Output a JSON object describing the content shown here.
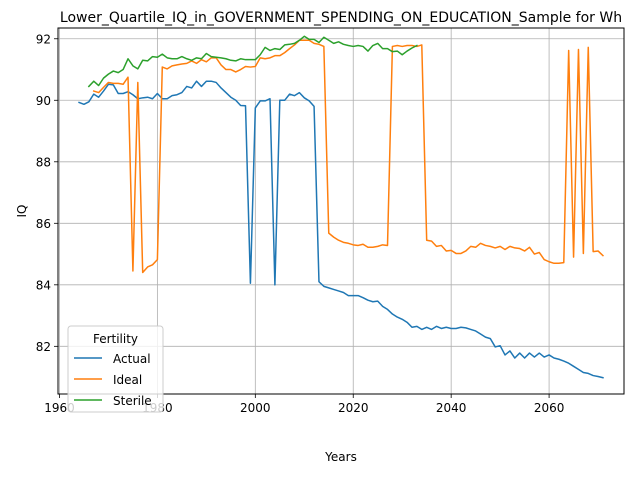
{
  "chart_data": {
    "type": "line",
    "title": "Lower_Quartile_IQ_in_GOVERNMENT_SPENDING_ON_EDUCATION_Sample for Wh",
    "xlabel": "Years",
    "ylabel": "IQ",
    "xlim": [
      1959.7,
      2075.3
    ],
    "ylim": [
      80.45,
      92.35
    ],
    "xticks": [
      1960,
      1980,
      2000,
      2020,
      2040,
      2060
    ],
    "yticks": [
      82,
      84,
      86,
      88,
      90,
      92
    ],
    "grid": true,
    "legend": {
      "title": "Fertility",
      "placement": "lower-left"
    },
    "series": [
      {
        "name": "Actual",
        "color": "#1f77b4",
        "points": [
          [
            1964,
            89.93
          ],
          [
            1965,
            89.87
          ],
          [
            1966,
            89.95
          ],
          [
            1967,
            90.2
          ],
          [
            1968,
            90.1
          ],
          [
            1969,
            90.3
          ],
          [
            1970,
            90.52
          ],
          [
            1971,
            90.5
          ],
          [
            1972,
            90.22
          ],
          [
            1973,
            90.22
          ],
          [
            1974,
            90.28
          ],
          [
            1975,
            90.18
          ],
          [
            1976,
            90.05
          ],
          [
            1977,
            90.08
          ],
          [
            1978,
            90.1
          ],
          [
            1979,
            90.05
          ],
          [
            1980,
            90.22
          ],
          [
            1981,
            90.05
          ],
          [
            1982,
            90.05
          ],
          [
            1983,
            90.15
          ],
          [
            1984,
            90.18
          ],
          [
            1985,
            90.25
          ],
          [
            1986,
            90.45
          ],
          [
            1987,
            90.4
          ],
          [
            1988,
            90.62
          ],
          [
            1989,
            90.45
          ],
          [
            1990,
            90.62
          ],
          [
            1991,
            90.62
          ],
          [
            1992,
            90.58
          ],
          [
            1993,
            90.4
          ],
          [
            1994,
            90.25
          ],
          [
            1995,
            90.1
          ],
          [
            1996,
            90.0
          ],
          [
            1997,
            89.83
          ],
          [
            1998,
            89.82
          ],
          [
            1999,
            84.05
          ],
          [
            2000,
            89.75
          ],
          [
            2001,
            89.98
          ],
          [
            2002,
            89.98
          ],
          [
            2003,
            90.05
          ],
          [
            2004,
            84.0
          ],
          [
            2005,
            90.0
          ],
          [
            2006,
            90.0
          ],
          [
            2007,
            90.2
          ],
          [
            2008,
            90.15
          ],
          [
            2009,
            90.25
          ],
          [
            2010,
            90.08
          ],
          [
            2011,
            89.98
          ],
          [
            2012,
            89.8
          ],
          [
            2013,
            84.1
          ],
          [
            2014,
            83.95
          ],
          [
            2015,
            83.9
          ],
          [
            2016,
            83.85
          ],
          [
            2017,
            83.8
          ],
          [
            2018,
            83.75
          ],
          [
            2019,
            83.65
          ],
          [
            2020,
            83.65
          ],
          [
            2021,
            83.65
          ],
          [
            2022,
            83.58
          ],
          [
            2023,
            83.5
          ],
          [
            2024,
            83.45
          ],
          [
            2025,
            83.47
          ],
          [
            2026,
            83.3
          ],
          [
            2027,
            83.2
          ],
          [
            2028,
            83.05
          ],
          [
            2029,
            82.95
          ],
          [
            2030,
            82.88
          ],
          [
            2031,
            82.78
          ],
          [
            2032,
            82.62
          ],
          [
            2033,
            82.65
          ],
          [
            2034,
            82.55
          ],
          [
            2035,
            82.62
          ],
          [
            2036,
            82.55
          ],
          [
            2037,
            82.65
          ],
          [
            2038,
            82.58
          ],
          [
            2039,
            82.62
          ],
          [
            2040,
            82.58
          ],
          [
            2041,
            82.58
          ],
          [
            2042,
            82.62
          ],
          [
            2043,
            82.6
          ],
          [
            2044,
            82.55
          ],
          [
            2045,
            82.5
          ],
          [
            2046,
            82.4
          ],
          [
            2047,
            82.3
          ],
          [
            2048,
            82.25
          ],
          [
            2049,
            81.98
          ],
          [
            2050,
            82.02
          ],
          [
            2051,
            81.72
          ],
          [
            2052,
            81.85
          ],
          [
            2053,
            81.62
          ],
          [
            2054,
            81.78
          ],
          [
            2055,
            81.62
          ],
          [
            2056,
            81.78
          ],
          [
            2057,
            81.65
          ],
          [
            2058,
            81.78
          ],
          [
            2059,
            81.65
          ],
          [
            2060,
            81.72
          ],
          [
            2061,
            81.62
          ],
          [
            2062,
            81.58
          ],
          [
            2063,
            81.52
          ],
          [
            2064,
            81.45
          ],
          [
            2065,
            81.35
          ],
          [
            2066,
            81.25
          ],
          [
            2067,
            81.15
          ],
          [
            2068,
            81.12
          ],
          [
            2069,
            81.05
          ],
          [
            2070,
            81.02
          ],
          [
            2071,
            80.98
          ]
        ]
      },
      {
        "name": "Ideal",
        "color": "#ff7f0e",
        "points": [
          [
            1967,
            90.3
          ],
          [
            1968,
            90.25
          ],
          [
            1969,
            90.42
          ],
          [
            1970,
            90.58
          ],
          [
            1971,
            90.55
          ],
          [
            1972,
            90.55
          ],
          [
            1973,
            90.52
          ],
          [
            1974,
            90.75
          ],
          [
            1975,
            84.45
          ],
          [
            1976,
            90.58
          ],
          [
            1977,
            84.4
          ],
          [
            1978,
            84.58
          ],
          [
            1979,
            84.65
          ],
          [
            1980,
            84.82
          ],
          [
            1981,
            91.08
          ],
          [
            1982,
            91.02
          ],
          [
            1983,
            91.12
          ],
          [
            1984,
            91.15
          ],
          [
            1985,
            91.18
          ],
          [
            1986,
            91.2
          ],
          [
            1987,
            91.28
          ],
          [
            1988,
            91.2
          ],
          [
            1989,
            91.32
          ],
          [
            1990,
            91.25
          ],
          [
            1991,
            91.38
          ],
          [
            1992,
            91.38
          ],
          [
            1993,
            91.15
          ],
          [
            1994,
            91.0
          ],
          [
            1995,
            91.0
          ],
          [
            1996,
            90.92
          ],
          [
            1997,
            91.0
          ],
          [
            1998,
            91.1
          ],
          [
            1999,
            91.08
          ],
          [
            2000,
            91.1
          ],
          [
            2001,
            91.38
          ],
          [
            2002,
            91.35
          ],
          [
            2003,
            91.38
          ],
          [
            2004,
            91.45
          ],
          [
            2005,
            91.45
          ],
          [
            2006,
            91.55
          ],
          [
            2007,
            91.68
          ],
          [
            2008,
            91.8
          ],
          [
            2009,
            91.95
          ],
          [
            2010,
            91.95
          ],
          [
            2011,
            91.95
          ],
          [
            2012,
            91.85
          ],
          [
            2013,
            91.82
          ],
          [
            2014,
            91.75
          ],
          [
            2015,
            85.68
          ],
          [
            2016,
            85.55
          ],
          [
            2017,
            85.45
          ],
          [
            2018,
            85.38
          ],
          [
            2019,
            85.35
          ],
          [
            2020,
            85.3
          ],
          [
            2021,
            85.28
          ],
          [
            2022,
            85.32
          ],
          [
            2023,
            85.22
          ],
          [
            2024,
            85.22
          ],
          [
            2025,
            85.25
          ],
          [
            2026,
            85.3
          ],
          [
            2027,
            85.28
          ],
          [
            2028,
            91.75
          ],
          [
            2029,
            91.78
          ],
          [
            2030,
            91.75
          ],
          [
            2031,
            91.78
          ],
          [
            2032,
            91.78
          ],
          [
            2033,
            91.75
          ],
          [
            2034,
            91.8
          ],
          [
            2035,
            85.45
          ],
          [
            2036,
            85.42
          ],
          [
            2037,
            85.25
          ],
          [
            2038,
            85.28
          ],
          [
            2039,
            85.1
          ],
          [
            2040,
            85.12
          ],
          [
            2041,
            85.02
          ],
          [
            2042,
            85.02
          ],
          [
            2043,
            85.1
          ],
          [
            2044,
            85.25
          ],
          [
            2045,
            85.22
          ],
          [
            2046,
            85.35
          ],
          [
            2047,
            85.28
          ],
          [
            2048,
            85.25
          ],
          [
            2049,
            85.2
          ],
          [
            2050,
            85.25
          ],
          [
            2051,
            85.15
          ],
          [
            2052,
            85.25
          ],
          [
            2053,
            85.2
          ],
          [
            2054,
            85.18
          ],
          [
            2055,
            85.1
          ],
          [
            2056,
            85.22
          ],
          [
            2057,
            85.0
          ],
          [
            2058,
            85.05
          ],
          [
            2059,
            84.82
          ],
          [
            2060,
            84.75
          ],
          [
            2061,
            84.7
          ],
          [
            2062,
            84.7
          ],
          [
            2063,
            84.72
          ],
          [
            2064,
            91.62
          ],
          [
            2065,
            84.9
          ],
          [
            2066,
            91.65
          ],
          [
            2067,
            85.02
          ],
          [
            2068,
            91.72
          ],
          [
            2069,
            85.08
          ],
          [
            2070,
            85.1
          ],
          [
            2071,
            84.95
          ]
        ]
      },
      {
        "name": "Sterile",
        "color": "#2ca02c",
        "points": [
          [
            1966,
            90.45
          ],
          [
            1967,
            90.62
          ],
          [
            1968,
            90.48
          ],
          [
            1969,
            90.72
          ],
          [
            1970,
            90.85
          ],
          [
            1971,
            90.95
          ],
          [
            1972,
            90.9
          ],
          [
            1973,
            91.0
          ],
          [
            1974,
            91.35
          ],
          [
            1975,
            91.12
          ],
          [
            1976,
            91.02
          ],
          [
            1977,
            91.3
          ],
          [
            1978,
            91.28
          ],
          [
            1979,
            91.42
          ],
          [
            1980,
            91.4
          ],
          [
            1981,
            91.5
          ],
          [
            1982,
            91.38
          ],
          [
            1983,
            91.35
          ],
          [
            1984,
            91.35
          ],
          [
            1985,
            91.42
          ],
          [
            1986,
            91.35
          ],
          [
            1987,
            91.3
          ],
          [
            1988,
            91.38
          ],
          [
            1989,
            91.35
          ],
          [
            1990,
            91.52
          ],
          [
            1991,
            91.42
          ],
          [
            1992,
            91.4
          ],
          [
            1993,
            91.38
          ],
          [
            1994,
            91.35
          ],
          [
            1995,
            91.3
          ],
          [
            1996,
            91.28
          ],
          [
            1997,
            91.35
          ],
          [
            1998,
            91.32
          ],
          [
            1999,
            91.32
          ],
          [
            2000,
            91.32
          ],
          [
            2001,
            91.48
          ],
          [
            2002,
            91.72
          ],
          [
            2003,
            91.62
          ],
          [
            2004,
            91.68
          ],
          [
            2005,
            91.65
          ],
          [
            2006,
            91.8
          ],
          [
            2007,
            91.82
          ],
          [
            2008,
            91.85
          ],
          [
            2009,
            91.95
          ],
          [
            2010,
            92.08
          ],
          [
            2011,
            91.98
          ],
          [
            2012,
            91.98
          ],
          [
            2013,
            91.88
          ],
          [
            2014,
            92.05
          ],
          [
            2015,
            91.95
          ],
          [
            2016,
            91.85
          ],
          [
            2017,
            91.9
          ],
          [
            2018,
            91.82
          ],
          [
            2019,
            91.78
          ],
          [
            2020,
            91.75
          ],
          [
            2021,
            91.78
          ],
          [
            2022,
            91.75
          ],
          [
            2023,
            91.6
          ],
          [
            2024,
            91.78
          ],
          [
            2025,
            91.85
          ],
          [
            2026,
            91.68
          ],
          [
            2027,
            91.68
          ],
          [
            2028,
            91.58
          ],
          [
            2029,
            91.6
          ],
          [
            2030,
            91.48
          ],
          [
            2031,
            91.6
          ],
          [
            2032,
            91.7
          ],
          [
            2033,
            91.78
          ]
        ]
      }
    ]
  }
}
